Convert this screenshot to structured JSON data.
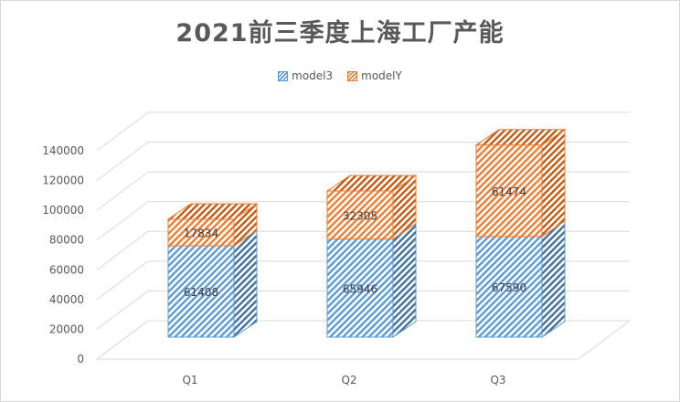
{
  "chart_data": {
    "type": "bar",
    "title": "2021前三季度上海工厂产能",
    "categories": [
      "Q1",
      "Q2",
      "Q3"
    ],
    "series": [
      {
        "name": "model3",
        "values": [
          61408,
          65946,
          67590
        ],
        "color": "#5b9bd5"
      },
      {
        "name": "modelY",
        "values": [
          17834,
          32305,
          61474
        ],
        "color": "#ed7d31"
      }
    ],
    "stacked": true,
    "ylim": [
      0,
      140000
    ],
    "yticks": [
      "0",
      "20000",
      "40000",
      "60000",
      "80000",
      "100000",
      "120000",
      "140000"
    ],
    "grid": true,
    "legend": "top",
    "style": "3d-hatched"
  }
}
